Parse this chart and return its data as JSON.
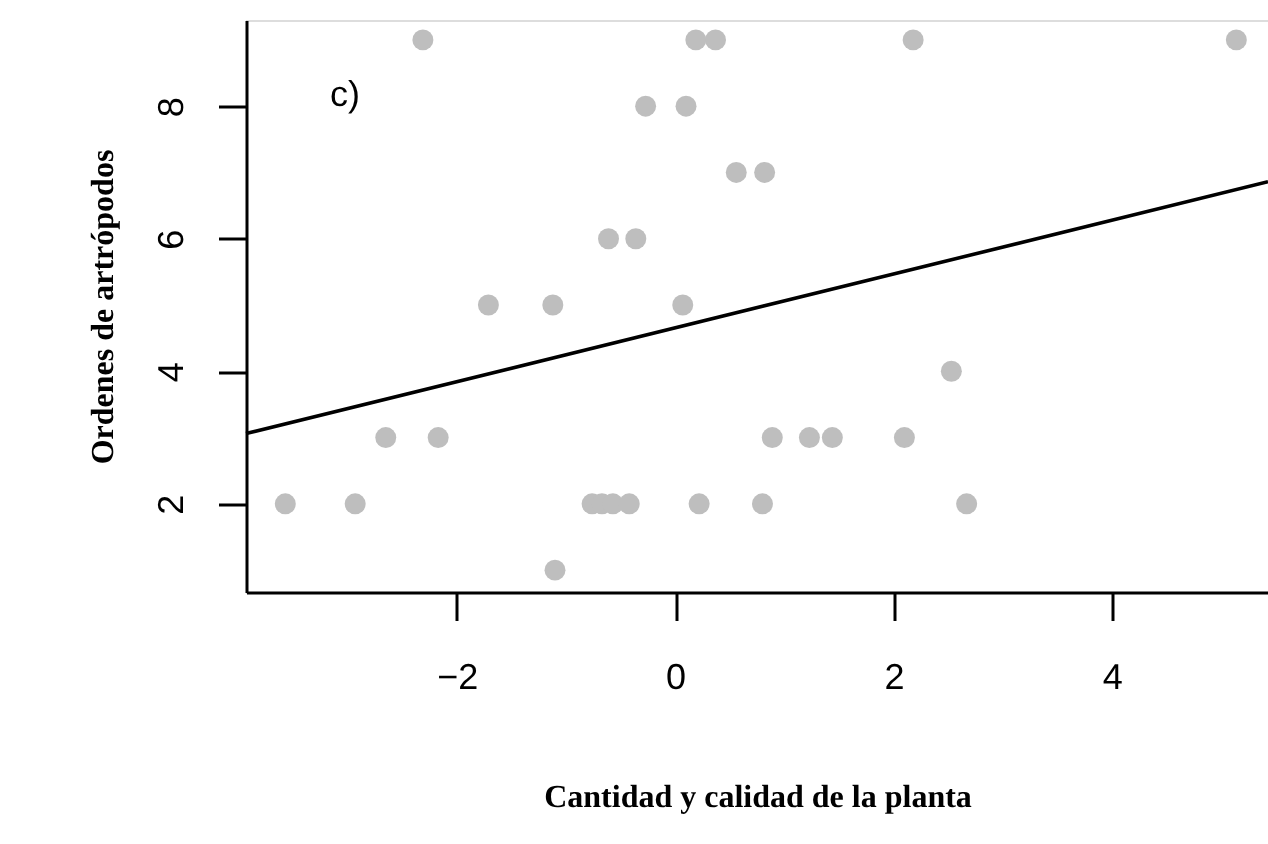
{
  "chart_data": {
    "type": "scatter",
    "xlabel": "Cantidad y calidad de la planta",
    "ylabel": "Ordenes de artrópodos",
    "annotations": [
      "c)"
    ],
    "xlim": [
      -3.93,
      5.43
    ],
    "ylim": [
      0.67,
      9.3
    ],
    "xticks": [
      -2,
      0,
      2,
      4
    ],
    "yticks": [
      2,
      4,
      6,
      8
    ],
    "grid": false,
    "marker": "circle",
    "series": [
      {
        "type": "scatter",
        "color": "#bebebe",
        "x": [
          -2.31,
          0.19,
          0.37,
          2.18,
          5.14,
          -0.27,
          0.1,
          0.56,
          0.82,
          -0.61,
          -0.36,
          -1.71,
          -1.12,
          0.07,
          2.53,
          -2.65,
          -2.17,
          0.89,
          1.23,
          1.44,
          2.1,
          -3.57,
          -2.93,
          -0.76,
          -0.67,
          -0.57,
          -0.42,
          0.22,
          0.8,
          2.67,
          -1.1
        ],
        "values": [
          9,
          9,
          9,
          9,
          9,
          8,
          8,
          7,
          7,
          6,
          6,
          5,
          5,
          5,
          4,
          3,
          3,
          3,
          3,
          3,
          3,
          2,
          2,
          2,
          2,
          2,
          2,
          2,
          2,
          2,
          1
        ]
      },
      {
        "type": "line",
        "color": "#000000",
        "line_style": "solid",
        "marker": "none",
        "x": [
          -3.93,
          5.43
        ],
        "values": [
          3.06,
          6.86
        ]
      }
    ]
  }
}
